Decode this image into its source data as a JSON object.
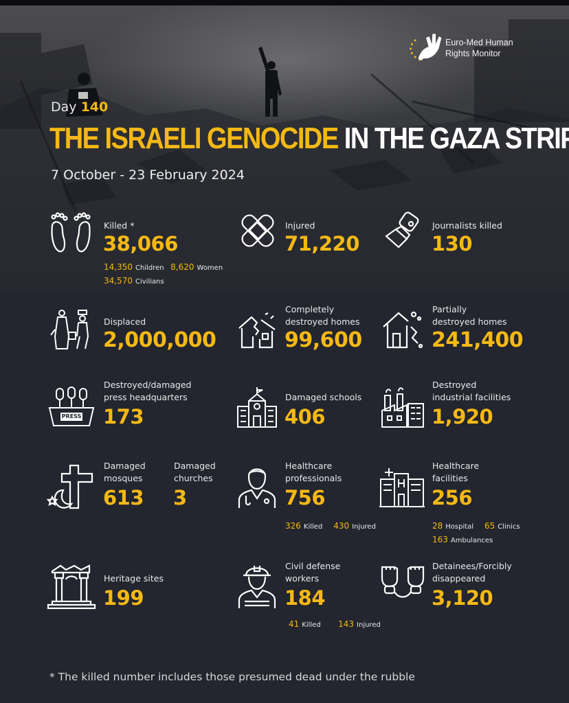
{
  "brand": {
    "line1": "Euro-Med Human",
    "line2": "Rights Monitor"
  },
  "header": {
    "day_label": "Day",
    "day_number": "140",
    "title_highlight": "THE ISRAELI GENOCIDE",
    "title_rest": "IN THE GAZA STRIP",
    "dates": "7 October - 23 February 2024"
  },
  "stats": {
    "killed": {
      "label": "Killed *",
      "value": "38,066",
      "children_n": "14,350",
      "children_l": "Children",
      "women_n": "8,620",
      "women_l": "Women",
      "civilians_n": "34,570",
      "civilians_l": "Civilians"
    },
    "injured": {
      "label": "Injured",
      "value": "71,220"
    },
    "journalists": {
      "label": "Journalists killed",
      "value": "130"
    },
    "displaced": {
      "label": "Displaced",
      "value": "2,000,000"
    },
    "destroyed_homes": {
      "label1": "Completely",
      "label2": "destroyed homes",
      "value": "99,600"
    },
    "partial_homes": {
      "label1": "Partially",
      "label2": "destroyed homes",
      "value": "241,400"
    },
    "press": {
      "label1": "Destroyed/damaged",
      "label2": "press headquarters",
      "value": "173",
      "sign": "PRESS"
    },
    "schools": {
      "label": "Damaged schools",
      "value": "406"
    },
    "industrial": {
      "label1": "Destroyed",
      "label2": "industrial facilities",
      "value": "1,920"
    },
    "mosques": {
      "label1": "Damaged",
      "label2": "mosques",
      "value": "613"
    },
    "churches": {
      "label1": "Damaged",
      "label2": "churches",
      "value": "3"
    },
    "health_pros": {
      "label1": "Healthcare",
      "label2": "professionals",
      "value": "756",
      "killed_n": "326",
      "killed_l": "Killed",
      "injured_n": "430",
      "injured_l": "Injured"
    },
    "health_fac": {
      "label1": "Healthcare",
      "label2": "facilities",
      "value": "256",
      "hosp_n": "28",
      "hosp_l": "Hospital",
      "clinic_n": "65",
      "clinic_l": "Clinics",
      "amb_n": "163",
      "amb_l": "Ambulances"
    },
    "heritage": {
      "label": "Heritage sites",
      "value": "199"
    },
    "civil_defense": {
      "label1": "Civil defense",
      "label2": "workers",
      "value": "184",
      "killed_n": "41",
      "killed_l": "Killed",
      "injured_n": "143",
      "injured_l": "Injured"
    },
    "detainees": {
      "label1": "Detainees/Forcibly",
      "label2": "disappeared",
      "value": "3,120"
    }
  },
  "footnote": "* The killed number includes those presumed dead under the rubble",
  "colors": {
    "accent": "#f5b915",
    "background": "#23252f",
    "text": "#ffffff"
  }
}
